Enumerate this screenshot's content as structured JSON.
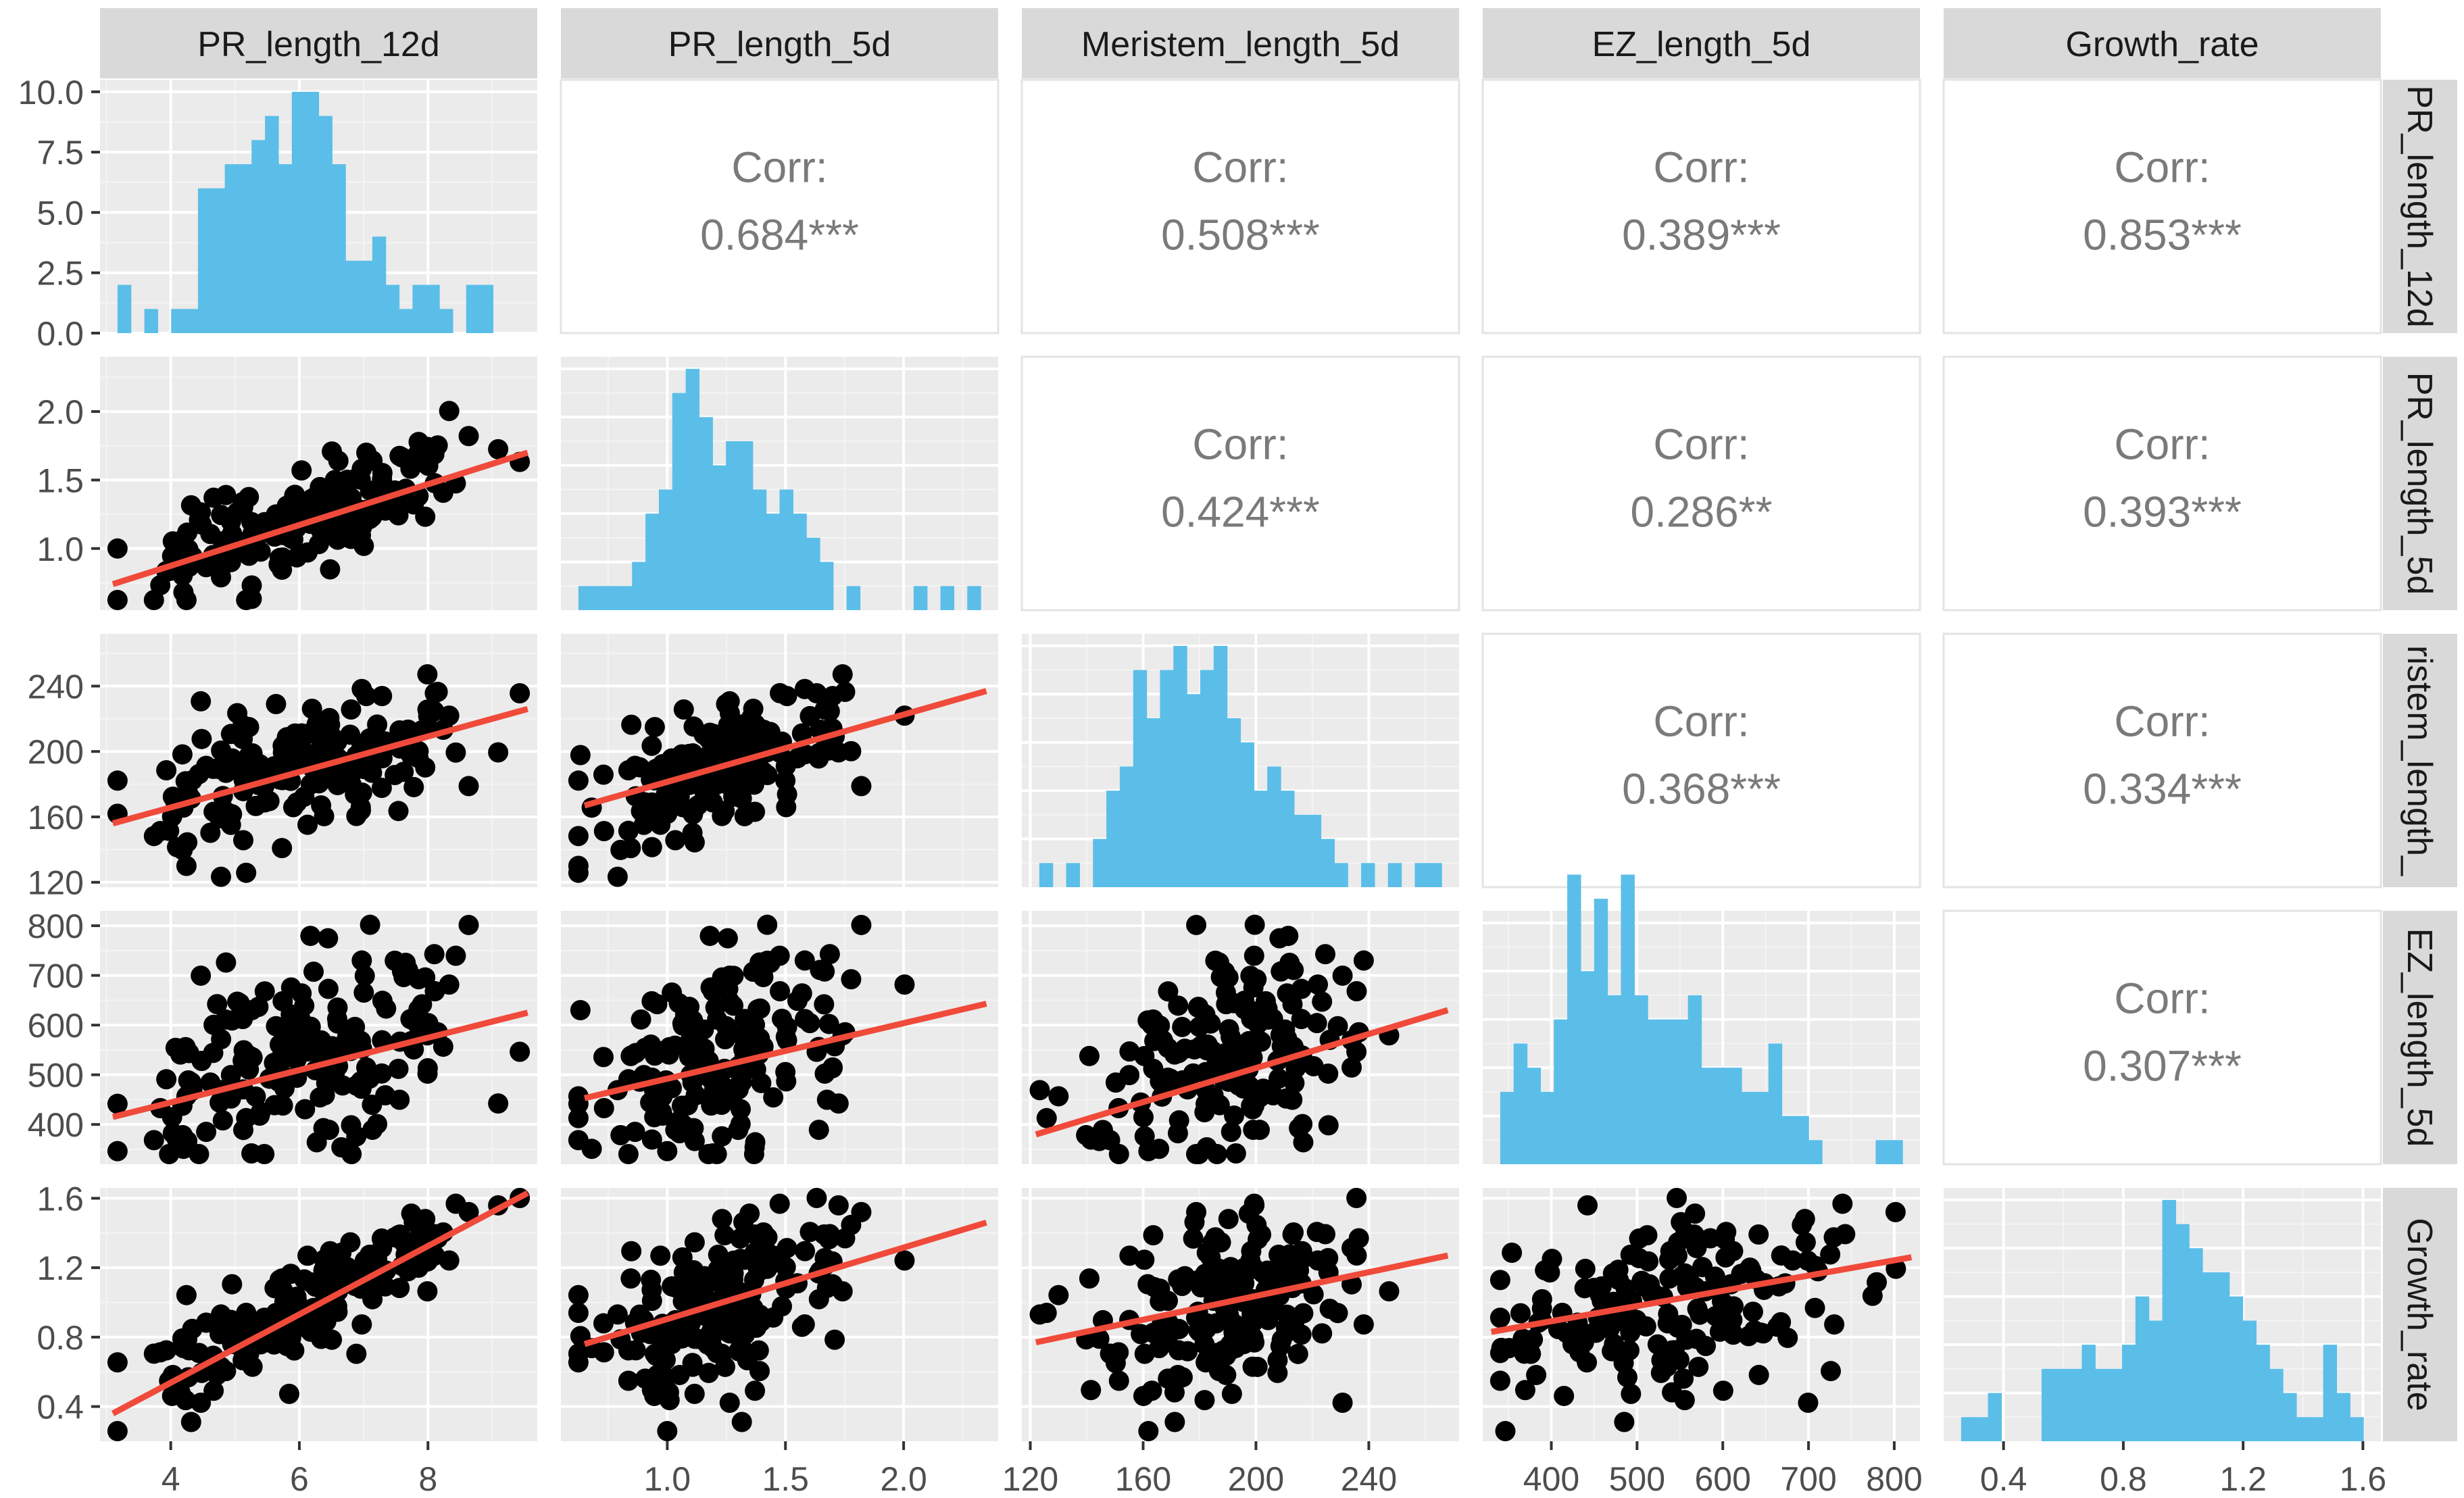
{
  "chart_data": {
    "type": "scatter_matrix",
    "variables": [
      "PR_length_12d",
      "PR_length_5d",
      "Meristem_length_5d",
      "EZ_length_5d",
      "Growth_rate"
    ],
    "column_strip_labels": [
      "PR_length_12d",
      "PR_length_5d",
      "Meristem_length_5d",
      "EZ_length_5d",
      "Growth_rate"
    ],
    "row_strip_labels": [
      "PR_length_12d",
      "PR_length_5d",
      "ristem_length_",
      "EZ_length_5d",
      "Growth_rate"
    ],
    "axis_ranges": [
      [
        2.9,
        9.7
      ],
      [
        0.55,
        2.4
      ],
      [
        117,
        272
      ],
      [
        320,
        830
      ],
      [
        0.2,
        1.66
      ]
    ],
    "x_ticks": [
      {
        "values": [
          4,
          6,
          8
        ],
        "labels": [
          "4",
          "6",
          "8"
        ]
      },
      {
        "values": [
          1.0,
          1.5,
          2.0
        ],
        "labels": [
          "1.0",
          "1.5",
          "2.0"
        ]
      },
      {
        "values": [
          120,
          160,
          200,
          240
        ],
        "labels": [
          "120",
          "160",
          "200",
          "240"
        ]
      },
      {
        "values": [
          400,
          500,
          600,
          700,
          800
        ],
        "labels": [
          "400",
          "500",
          "600",
          "700",
          "800"
        ]
      },
      {
        "values": [
          0.4,
          0.8,
          1.2,
          1.6
        ],
        "labels": [
          "0.4",
          "0.8",
          "1.2",
          "1.6"
        ]
      }
    ],
    "y_ticks": [
      {
        "values": [
          0,
          2.5,
          5,
          7.5,
          10
        ],
        "labels": [
          "0.0",
          "2.5",
          "5.0",
          "7.5",
          "10.0"
        ]
      },
      {
        "values": [
          1.0,
          1.5,
          2.0
        ],
        "labels": [
          "1.0",
          "1.5",
          "2.0"
        ]
      },
      {
        "values": [
          120,
          160,
          200,
          240
        ],
        "labels": [
          "120",
          "160",
          "200",
          "240"
        ]
      },
      {
        "values": [
          400,
          500,
          600,
          700,
          800
        ],
        "labels": [
          "400",
          "500",
          "600",
          "700",
          "800"
        ]
      },
      {
        "values": [
          0.4,
          0.8,
          1.2,
          1.6
        ],
        "labels": [
          "0.4",
          "0.8",
          "1.2",
          "1.6"
        ]
      }
    ],
    "histogram_count_range": [
      0,
      10.5
    ],
    "histograms": [
      {
        "variable": "PR_length_12d",
        "bins": 30,
        "color": "#5bbee8",
        "counts": [
          2,
          0,
          1,
          0,
          1,
          1,
          6,
          6,
          7,
          7,
          8,
          9,
          7,
          10,
          10,
          9,
          7,
          3,
          3,
          4,
          2,
          1,
          2,
          2,
          1,
          0,
          2,
          2,
          0,
          0
        ]
      },
      {
        "variable": "PR_length_5d",
        "bins": 30,
        "color": "#5bbee8",
        "counts": [
          1,
          1,
          1,
          1,
          2,
          4,
          5,
          9,
          10,
          8,
          6,
          7,
          7,
          5,
          4,
          5,
          4,
          3,
          2,
          0,
          1,
          0,
          0,
          0,
          0,
          1,
          0,
          1,
          0,
          1
        ]
      },
      {
        "variable": "Meristem_length_5d",
        "bins": 30,
        "color": "#5bbee8",
        "counts": [
          1,
          0,
          1,
          0,
          2,
          4,
          5,
          9,
          7,
          9,
          10,
          8,
          9,
          10,
          7,
          6,
          4,
          5,
          4,
          3,
          3,
          2,
          1,
          0,
          1,
          0,
          1,
          0,
          1,
          1
        ]
      },
      {
        "variable": "EZ_length_5d",
        "bins": 30,
        "color": "#5bbee8",
        "counts": [
          3,
          5,
          4,
          3,
          6,
          12,
          8,
          11,
          7,
          12,
          7,
          6,
          6,
          6,
          7,
          4,
          4,
          4,
          3,
          3,
          5,
          2,
          2,
          1,
          0,
          0,
          0,
          0,
          1,
          1
        ]
      },
      {
        "variable": "Growth_rate",
        "bins": 30,
        "color": "#5bbee8",
        "counts": [
          1,
          1,
          2,
          0,
          0,
          0,
          3,
          3,
          3,
          4,
          3,
          3,
          4,
          6,
          5,
          10,
          9,
          8,
          7,
          7,
          6,
          5,
          4,
          3,
          2,
          1,
          1,
          4,
          2,
          1
        ]
      }
    ],
    "correlations": [
      {
        "row": 0,
        "col": 1,
        "label": "Corr:",
        "value": "0.684***"
      },
      {
        "row": 0,
        "col": 2,
        "label": "Corr:",
        "value": "0.508***"
      },
      {
        "row": 0,
        "col": 3,
        "label": "Corr:",
        "value": "0.389***"
      },
      {
        "row": 0,
        "col": 4,
        "label": "Corr:",
        "value": "0.853***"
      },
      {
        "row": 1,
        "col": 2,
        "label": "Corr:",
        "value": "0.424***"
      },
      {
        "row": 1,
        "col": 3,
        "label": "Corr:",
        "value": "0.286**"
      },
      {
        "row": 1,
        "col": 4,
        "label": "Corr:",
        "value": "0.393***"
      },
      {
        "row": 2,
        "col": 3,
        "label": "Corr:",
        "value": "0.368***"
      },
      {
        "row": 2,
        "col": 4,
        "label": "Corr:",
        "value": "0.334***"
      },
      {
        "row": 3,
        "col": 4,
        "label": "Corr:",
        "value": "0.307***"
      }
    ],
    "scatter_point_count": 170,
    "fit_lines": [
      {
        "row": 1,
        "col": 0,
        "x": [
          3.1,
          9.55
        ],
        "y": [
          0.74,
          1.7
        ]
      },
      {
        "row": 2,
        "col": 0,
        "x": [
          3.1,
          9.55
        ],
        "y": [
          156,
          226
        ]
      },
      {
        "row": 2,
        "col": 1,
        "x": [
          0.65,
          2.35
        ],
        "y": [
          167,
          237
        ]
      },
      {
        "row": 3,
        "col": 0,
        "x": [
          3.1,
          9.55
        ],
        "y": [
          415,
          625
        ]
      },
      {
        "row": 3,
        "col": 1,
        "x": [
          0.65,
          2.35
        ],
        "y": [
          453,
          643
        ]
      },
      {
        "row": 3,
        "col": 2,
        "x": [
          122,
          268
        ],
        "y": [
          380,
          630
        ]
      },
      {
        "row": 4,
        "col": 0,
        "x": [
          3.1,
          9.55
        ],
        "y": [
          0.36,
          1.63
        ]
      },
      {
        "row": 4,
        "col": 1,
        "x": [
          0.65,
          2.35
        ],
        "y": [
          0.76,
          1.46
        ]
      },
      {
        "row": 4,
        "col": 2,
        "x": [
          122,
          268
        ],
        "y": [
          0.77,
          1.27
        ]
      },
      {
        "row": 4,
        "col": 3,
        "x": [
          330,
          820
        ],
        "y": [
          0.83,
          1.26
        ]
      }
    ],
    "colors": {
      "panel_bg": "#ebebeb",
      "grid_major": "#ffffff",
      "grid_minor": "#f4f4f4",
      "strip_bg": "#d9d9d9",
      "strip_text": "#1a1a1a",
      "corr_text": "#7a7a7a",
      "tick_text": "#4d4d4d",
      "bar": "#5bbee8",
      "point": "#000000",
      "fit": "#f04a3a"
    }
  }
}
